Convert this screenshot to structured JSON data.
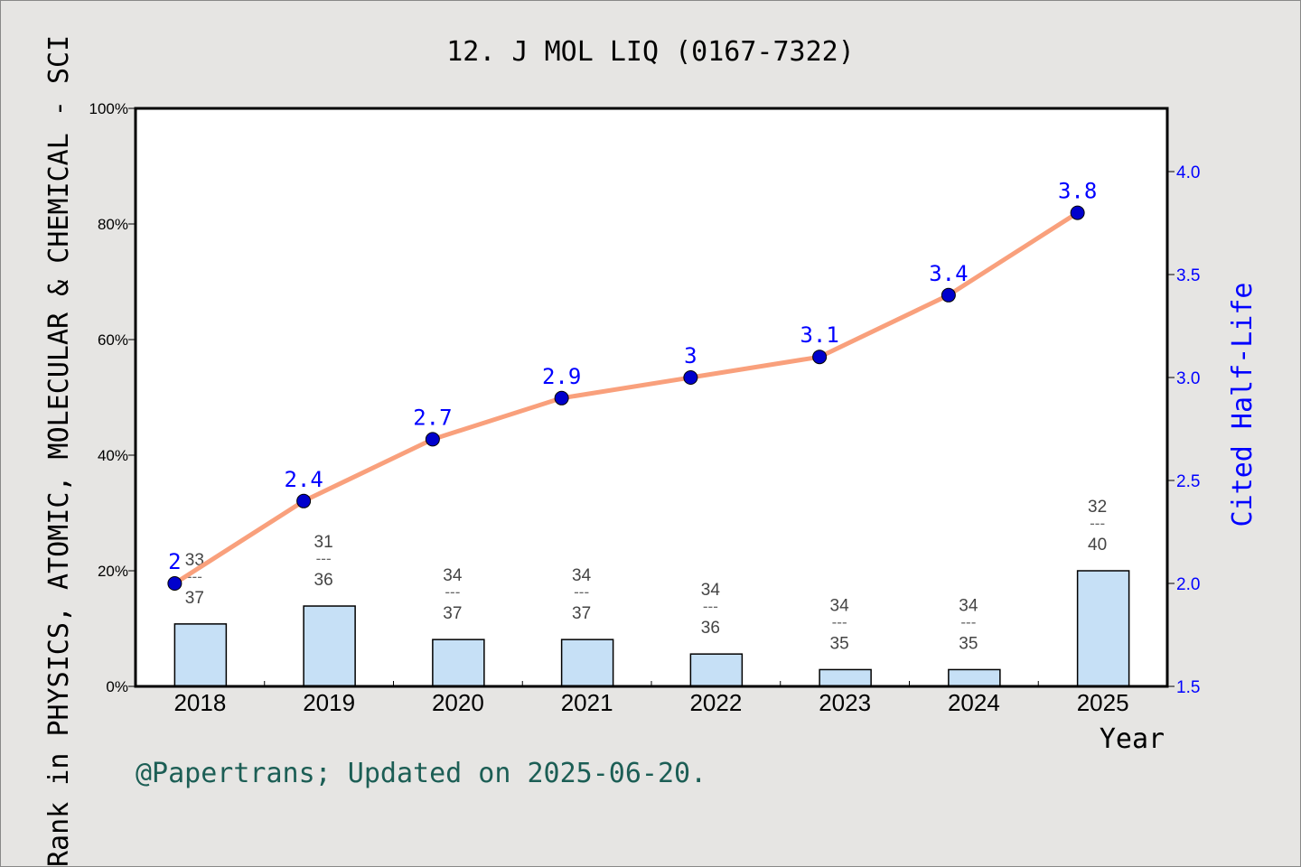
{
  "chart_data": {
    "type": "bar+line",
    "title": "12. J MOL LIQ (0167-7322)",
    "xlabel": "Year",
    "ylabel_left": "Rank in PHYSICS, ATOMIC, MOLECULAR & CHEMICAL - SCI",
    "ylabel_right": "Cited Half-Life",
    "footer": "@Papertrans; Updated on 2025-06-20.",
    "categories": [
      "2018",
      "2019",
      "2020",
      "2021",
      "2022",
      "2023",
      "2024",
      "2025"
    ],
    "left_axis": {
      "ylim": [
        0,
        100
      ],
      "ticks": [
        "0%",
        "20%",
        "40%",
        "60%",
        "80%",
        "100%"
      ]
    },
    "right_axis": {
      "ylim": [
        1.5,
        4.3
      ],
      "ticks": [
        "1.5",
        "2.0",
        "2.5",
        "3.0",
        "3.5",
        "4.0"
      ]
    },
    "bars": {
      "values_percent": [
        10.8,
        13.9,
        8.1,
        8.1,
        5.6,
        2.9,
        2.9,
        20.0
      ],
      "rank": [
        "33",
        "31",
        "34",
        "34",
        "34",
        "34",
        "34",
        "32"
      ],
      "total": [
        "37",
        "36",
        "37",
        "37",
        "36",
        "35",
        "35",
        "40"
      ],
      "separator": "---",
      "color": "#c6e0f6"
    },
    "line": {
      "values": [
        2,
        2.4,
        2.7,
        2.9,
        3,
        3.1,
        3.4,
        3.8
      ],
      "labels": [
        "2",
        "2.4",
        "2.7",
        "2.9",
        "3",
        "3.1",
        "3.4",
        "3.8"
      ],
      "line_color": "#f9a07c",
      "marker_color": "#0000cc"
    },
    "grid": false
  }
}
